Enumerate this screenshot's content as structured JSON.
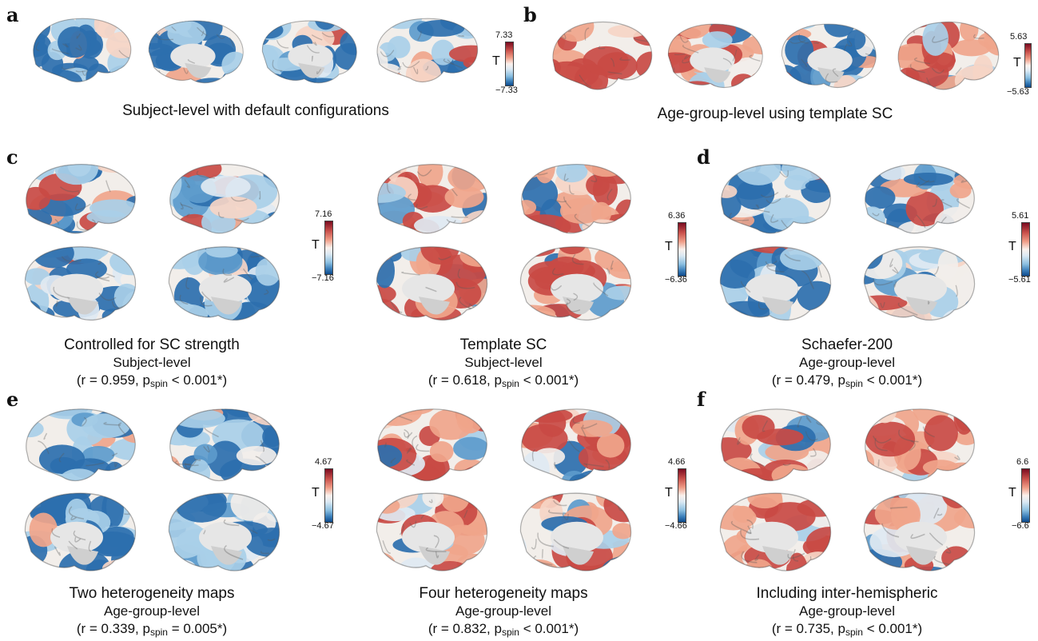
{
  "panels": {
    "a": {
      "label": "a",
      "caption": "Subject-level with default configurations",
      "cbar": {
        "max": "7.33",
        "min": "−7.33",
        "title": "T"
      }
    },
    "b": {
      "label": "b",
      "caption": "Age-group-level using template SC",
      "cbar": {
        "max": "5.63",
        "min": "−5.63",
        "title": "T"
      }
    },
    "c": {
      "label": "c"
    },
    "c1": {
      "title": "Controlled for SC strength",
      "level": "Subject-level",
      "r": "(r = 0.959, p",
      "sub": "spin",
      "p": " < 0.001*)",
      "cbar": {
        "max": "7.16",
        "min": "−7.16",
        "title": "T"
      }
    },
    "c2": {
      "title": "Template SC",
      "level": "Subject-level",
      "r": "(r = 0.618, p",
      "sub": "spin",
      "p": " < 0.001*)",
      "cbar": {
        "max": "6.36",
        "min": "−6.36",
        "title": "T"
      }
    },
    "d": {
      "label": "d",
      "title": "Schaefer-200",
      "level": "Age-group-level",
      "r": "(r = 0.479, p",
      "sub": "spin",
      "p": " < 0.001*)",
      "cbar": {
        "max": "5.61",
        "min": "−5.61",
        "title": "T"
      }
    },
    "e": {
      "label": "e"
    },
    "e1": {
      "title": "Two heterogeneity maps",
      "level": "Age-group-level",
      "r": "(r = 0.339, p",
      "sub": "spin",
      "p": " = 0.005*)",
      "cbar": {
        "max": "4.67",
        "min": "−4.67",
        "title": "T"
      }
    },
    "e2": {
      "title": "Four heterogeneity maps",
      "level": "Age-group-level",
      "r": "(r = 0.832, p",
      "sub": "spin",
      "p": " < 0.001*)",
      "cbar": {
        "max": "4.66",
        "min": "−4.66",
        "title": "T"
      }
    },
    "f": {
      "label": "f",
      "title": "Including inter-hemispheric",
      "level": "Age-group-level",
      "r": "(r = 0.735, p",
      "sub": "spin",
      "p": " < 0.001*)",
      "cbar": {
        "max": "6.6",
        "min": "−6.6",
        "title": "T"
      }
    }
  },
  "colors": {
    "neg": "#2c6fae",
    "neg_light": "#a9cfe8",
    "pos": "#c94a44",
    "pos_light": "#f0a58b",
    "neutral": "#f2eeea",
    "cortex_gray": "#d9d9d9"
  },
  "brain_views": [
    "lateral-left",
    "medial-left",
    "medial-right",
    "lateral-right"
  ]
}
